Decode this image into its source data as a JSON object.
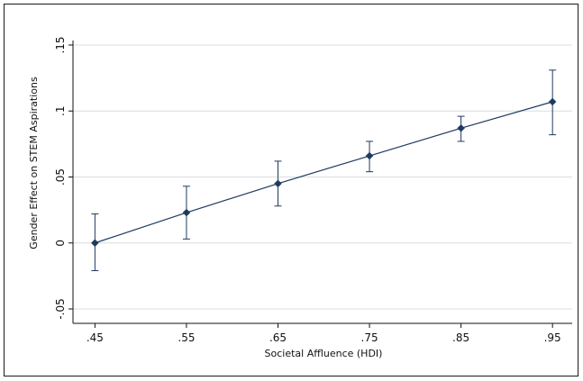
{
  "chart_data": {
    "type": "line",
    "title": "",
    "xlabel": "Societal Affluence (HDI)",
    "ylabel": "Gender Effect on STEM Aspirations",
    "xlim": [
      0.45,
      0.95
    ],
    "ylim": [
      -0.05,
      0.15
    ],
    "x_ticks": [
      0.45,
      0.55,
      0.65,
      0.75,
      0.85,
      0.95
    ],
    "x_tick_labels": [
      ".45",
      ".55",
      ".65",
      ".75",
      ".85",
      ".95"
    ],
    "y_ticks": [
      -0.05,
      0,
      0.05,
      0.1,
      0.15
    ],
    "y_tick_labels": [
      "-.05",
      "0",
      ".05",
      ".1",
      ".15"
    ],
    "grid": true,
    "legend": "none",
    "series": [
      {
        "x": [
          0.45,
          0.55,
          0.65,
          0.75,
          0.85,
          0.95
        ],
        "y": [
          0.0,
          0.023,
          0.045,
          0.066,
          0.087,
          0.107
        ],
        "ci_low": [
          -0.021,
          0.003,
          0.028,
          0.054,
          0.077,
          0.082
        ],
        "ci_high": [
          0.022,
          0.043,
          0.062,
          0.077,
          0.096,
          0.131
        ],
        "color": "#1e3a5f"
      }
    ],
    "colors": {
      "series": "#1e3a5f",
      "grid": "#d9dde3",
      "axis": "#111111"
    }
  }
}
